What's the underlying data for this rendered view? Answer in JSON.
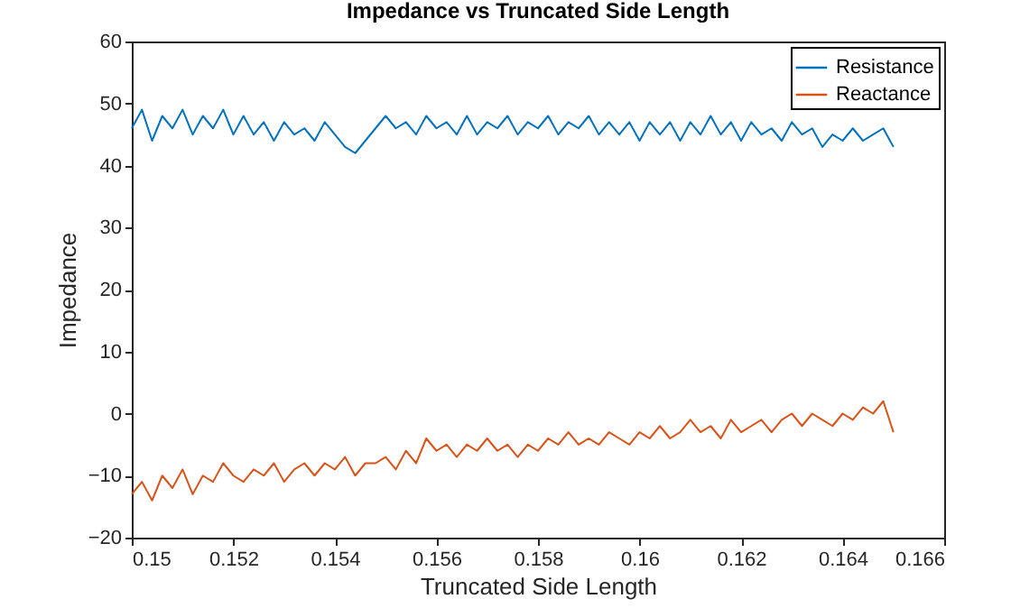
{
  "chart_data": {
    "type": "line",
    "title": "Impedance vs Truncated Side Length",
    "xlabel": "Truncated Side Length",
    "ylabel": "Impedance",
    "x": [
      0.15,
      0.1502,
      0.1504,
      0.1506,
      0.1508,
      0.151,
      0.1512,
      0.1514,
      0.1516,
      0.1518,
      0.152,
      0.1522,
      0.1524,
      0.1526,
      0.1528,
      0.153,
      0.1532,
      0.1534,
      0.1536,
      0.1538,
      0.154,
      0.1542,
      0.1544,
      0.1546,
      0.1548,
      0.155,
      0.1552,
      0.1554,
      0.1556,
      0.1558,
      0.156,
      0.1562,
      0.1564,
      0.1566,
      0.1568,
      0.157,
      0.1572,
      0.1574,
      0.1576,
      0.1578,
      0.158,
      0.1582,
      0.1584,
      0.1586,
      0.1588,
      0.159,
      0.1592,
      0.1594,
      0.1596,
      0.1598,
      0.16,
      0.1602,
      0.1604,
      0.1606,
      0.1608,
      0.161,
      0.1612,
      0.1614,
      0.1616,
      0.1618,
      0.162,
      0.1622,
      0.1624,
      0.1626,
      0.1628,
      0.163,
      0.1632,
      0.1634,
      0.1636,
      0.1638,
      0.164,
      0.1642,
      0.1644,
      0.1646,
      0.1648,
      0.165
    ],
    "series": [
      {
        "name": "Resistance",
        "color": "#0072bd",
        "values": [
          46,
          49,
          44,
          48,
          46,
          49,
          45,
          48,
          46,
          49,
          45,
          48,
          45,
          47,
          44,
          47,
          45,
          46,
          44,
          47,
          45,
          43,
          42,
          44,
          46,
          48,
          46,
          47,
          45,
          48,
          46,
          47,
          45,
          48,
          45,
          47,
          46,
          48,
          45,
          47,
          46,
          48,
          45,
          47,
          46,
          48,
          45,
          47,
          45,
          47,
          44,
          47,
          45,
          47,
          44,
          47,
          45,
          48,
          45,
          47,
          44,
          47,
          45,
          46,
          44,
          47,
          45,
          46,
          43,
          45,
          44,
          46,
          44,
          45,
          46,
          43
        ]
      },
      {
        "name": "Reactance",
        "color": "#d95319",
        "values": [
          -13,
          -11,
          -14,
          -10,
          -12,
          -9,
          -13,
          -10,
          -11,
          -8,
          -10,
          -11,
          -9,
          -10,
          -8,
          -11,
          -9,
          -8,
          -10,
          -8,
          -9,
          -7,
          -10,
          -8,
          -8,
          -7,
          -9,
          -6,
          -8,
          -4,
          -6,
          -5,
          -7,
          -5,
          -6,
          -4,
          -6,
          -5,
          -7,
          -5,
          -6,
          -4,
          -5,
          -3,
          -5,
          -4,
          -5,
          -3,
          -4,
          -5,
          -3,
          -4,
          -2,
          -4,
          -3,
          -1,
          -3,
          -2,
          -4,
          -1,
          -3,
          -2,
          -1,
          -3,
          -1,
          0,
          -2,
          0,
          -1,
          -2,
          0,
          -1,
          1,
          0,
          2,
          -3
        ]
      }
    ],
    "xlim": [
      0.15,
      0.166
    ],
    "ylim": [
      -20,
      60
    ],
    "xticks": [
      0.15,
      0.152,
      0.154,
      0.156,
      0.158,
      0.16,
      0.162,
      0.164,
      0.166
    ],
    "yticks": [
      -20,
      -10,
      0,
      10,
      20,
      30,
      40,
      50,
      60
    ],
    "legend": "top right",
    "grid": false
  }
}
